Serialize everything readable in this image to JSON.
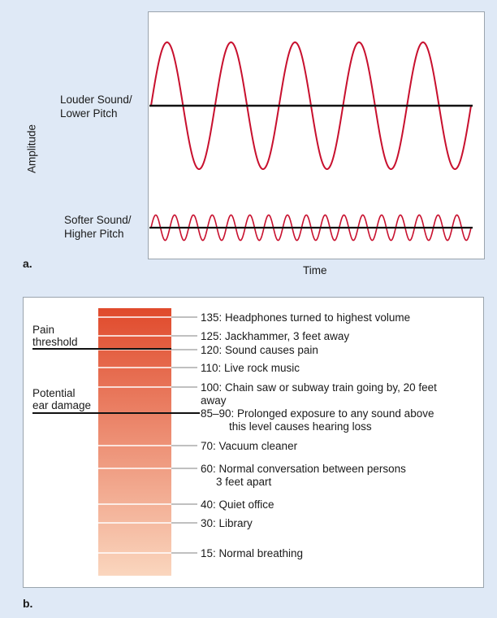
{
  "part_a": {
    "letter": "a.",
    "y_axis_label": "Amplitude",
    "x_axis_label": "Time",
    "wave_loud": {
      "label_line1": "Louder Sound/",
      "label_line2": "Lower Pitch",
      "cycles": 5,
      "relative_amplitude": 1.0
    },
    "wave_soft": {
      "label_line1": "Softer Sound/",
      "label_line2": "Higher Pitch",
      "cycles": 17,
      "relative_amplitude": 0.2
    },
    "colors": {
      "wave": "#c8102e",
      "baseline": "#111111"
    }
  },
  "part_b": {
    "letter": "b.",
    "thresholds": [
      {
        "label_line1": "Pain",
        "label_line2": "threshold",
        "db": 120
      },
      {
        "label_line1": "Potential",
        "label_line2": "ear damage",
        "db": 85
      }
    ],
    "levels": [
      {
        "db": 135,
        "text_line1": "135: Headphones turned to highest volume",
        "text_line2": ""
      },
      {
        "db": 125,
        "text_line1": "125: Jackhammer, 3 feet away",
        "text_line2": ""
      },
      {
        "db": 120,
        "text_line1": "120: Sound causes pain",
        "text_line2": ""
      },
      {
        "db": 110,
        "text_line1": "110: Live rock music",
        "text_line2": ""
      },
      {
        "db": 100,
        "text_line1": "100: Chain saw or subway train going by, 20 feet",
        "text_line2": "away"
      },
      {
        "db": 85,
        "text_line1": "85–90: Prolonged exposure to any sound above",
        "text_line2": "this level causes hearing loss"
      },
      {
        "db": 70,
        "text_line1": "70: Vacuum cleaner",
        "text_line2": ""
      },
      {
        "db": 60,
        "text_line1": "60: Normal conversation between persons",
        "text_line2": "3 feet apart"
      },
      {
        "db": 40,
        "text_line1": "40: Quiet office",
        "text_line2": ""
      },
      {
        "db": 30,
        "text_line1": "30: Library",
        "text_line2": ""
      },
      {
        "db": 15,
        "text_line1": "15: Normal breathing",
        "text_line2": ""
      }
    ],
    "colors": {
      "bar_top": "#e04a2c",
      "bar_bottom": "#fad6be",
      "tick": "#9a9a9a",
      "threshold_line": "#111111"
    }
  }
}
